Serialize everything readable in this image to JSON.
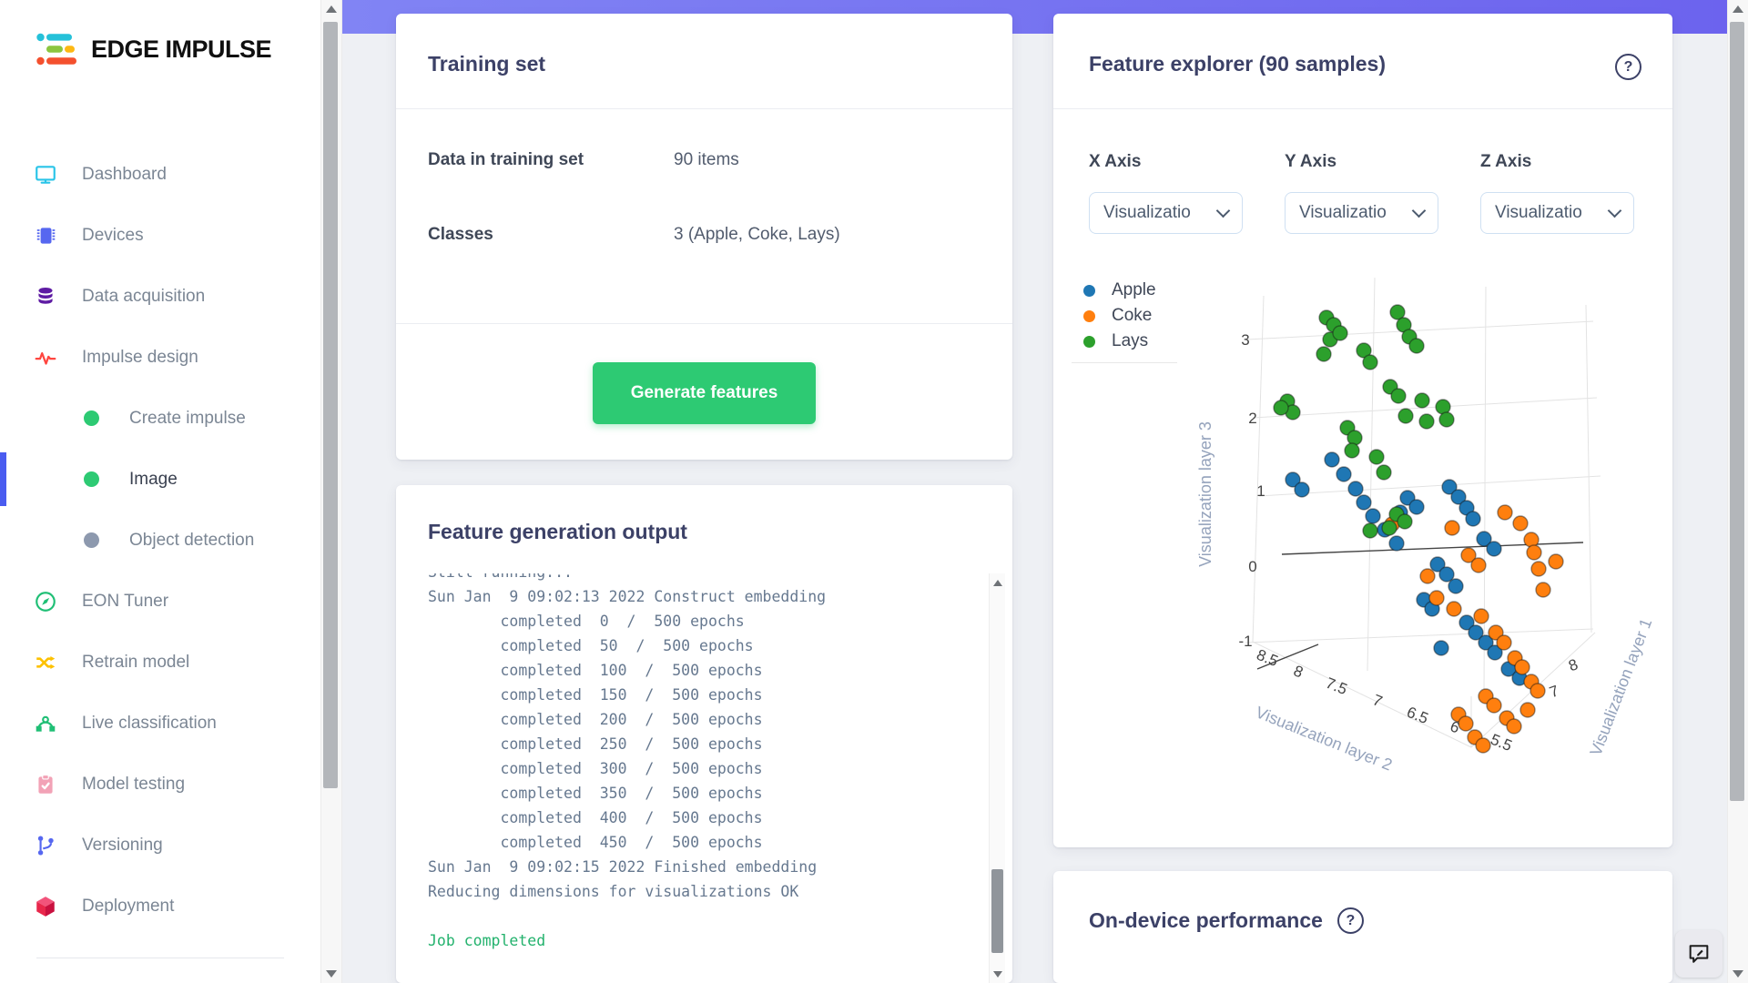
{
  "brand": {
    "name": "EDGE IMPULSE"
  },
  "sidebar": {
    "items": [
      {
        "label": "Dashboard",
        "icon": "dashboard"
      },
      {
        "label": "Devices",
        "icon": "devices"
      },
      {
        "label": "Data acquisition",
        "icon": "data-acquisition"
      },
      {
        "label": "Impulse design",
        "icon": "impulse-design"
      },
      {
        "label": "Create impulse",
        "sub": true,
        "dot": "#2dca73"
      },
      {
        "label": "Image",
        "sub": true,
        "dot": "#2dca73",
        "active": true
      },
      {
        "label": "Object detection",
        "sub": true,
        "dot": "#8d99ae"
      },
      {
        "label": "EON Tuner",
        "icon": "eon-tuner"
      },
      {
        "label": "Retrain model",
        "icon": "retrain-model"
      },
      {
        "label": "Live classification",
        "icon": "live-classification"
      },
      {
        "label": "Model testing",
        "icon": "model-testing"
      },
      {
        "label": "Versioning",
        "icon": "versioning"
      },
      {
        "label": "Deployment",
        "icon": "deployment"
      }
    ]
  },
  "training_set": {
    "title": "Training set",
    "rows": [
      {
        "label": "Data in training set",
        "value": "90 items"
      },
      {
        "label": "Classes",
        "value": "3 (Apple, Coke, Lays)"
      }
    ],
    "button_label": "Generate features"
  },
  "feature_output": {
    "title": "Feature generation output",
    "lines": [
      {
        "text": "Still running...",
        "clipped": true
      },
      {
        "text": "Sun Jan  9 09:02:13 2022 Construct embedding"
      },
      {
        "text": "        completed  0  /  500 epochs"
      },
      {
        "text": "        completed  50  /  500 epochs"
      },
      {
        "text": "        completed  100  /  500 epochs"
      },
      {
        "text": "        completed  150  /  500 epochs"
      },
      {
        "text": "        completed  200  /  500 epochs"
      },
      {
        "text": "        completed  250  /  500 epochs"
      },
      {
        "text": "        completed  300  /  500 epochs"
      },
      {
        "text": "        completed  350  /  500 epochs"
      },
      {
        "text": "        completed  400  /  500 epochs"
      },
      {
        "text": "        completed  450  /  500 epochs"
      },
      {
        "text": "Sun Jan  9 09:02:15 2022 Finished embedding"
      },
      {
        "text": "Reducing dimensions for visualizations OK"
      },
      {
        "text": ""
      },
      {
        "text": "Job completed",
        "status": "success"
      }
    ]
  },
  "feature_explorer": {
    "title": "Feature explorer (90 samples)",
    "help_glyph": "?",
    "axes": [
      {
        "label": "X Axis",
        "value": "Visualizatio"
      },
      {
        "label": "Y Axis",
        "value": "Visualizatio"
      },
      {
        "label": "Z Axis",
        "value": "Visualizatio"
      }
    ]
  },
  "on_device": {
    "title": "On-device performance",
    "help_glyph": "?"
  },
  "colors": {
    "accent_green": "#2dca73",
    "console_success": "#23b26d"
  },
  "chart_data": {
    "type": "scatter",
    "projection": "3d",
    "title": "Feature explorer (90 samples)",
    "samples": 90,
    "legend_position": "top-left",
    "legend": [
      {
        "name": "Apple",
        "color": "#1f77b4"
      },
      {
        "name": "Coke",
        "color": "#ff7f0e"
      },
      {
        "name": "Lays",
        "color": "#2ca02c"
      }
    ],
    "x_axis": {
      "title": "Visualization layer 2",
      "ticks": [
        "8.5",
        "8",
        "7.5",
        "7",
        "6.5",
        "6",
        "5.5"
      ]
    },
    "y_axis": {
      "title": "Visualization layer 1",
      "ticks": [
        "8",
        "7"
      ]
    },
    "z_axis": {
      "title": "Visualization layer 3",
      "ticks": [
        "3",
        "2",
        "1",
        "0",
        "-1"
      ]
    },
    "series": [
      {
        "name": "Apple",
        "color": "#1f77b4",
        "points": [
          [
            140,
            262
          ],
          [
            150,
            273
          ],
          [
            183,
            240
          ],
          [
            196,
            256
          ],
          [
            209,
            272
          ],
          [
            218,
            287
          ],
          [
            228,
            302
          ],
          [
            241,
            317
          ],
          [
            254,
            332
          ],
          [
            266,
            282
          ],
          [
            276,
            292
          ],
          [
            258,
            298
          ],
          [
            312,
            270
          ],
          [
            322,
            281
          ],
          [
            331,
            293
          ],
          [
            338,
            305
          ],
          [
            350,
            327
          ],
          [
            361,
            338
          ],
          [
            299,
            355
          ],
          [
            309,
            366
          ],
          [
            319,
            379
          ],
          [
            284,
            394
          ],
          [
            293,
            404
          ],
          [
            331,
            419
          ],
          [
            341,
            430
          ],
          [
            352,
            441
          ],
          [
            362,
            452
          ],
          [
            303,
            447
          ],
          [
            377,
            470
          ],
          [
            389,
            480
          ]
        ]
      },
      {
        "name": "Coke",
        "color": "#ff7f0e",
        "points": [
          [
            315,
            315
          ],
          [
            373,
            298
          ],
          [
            402,
            328
          ],
          [
            390,
            310
          ],
          [
            405,
            342
          ],
          [
            410,
            360
          ],
          [
            415,
            383
          ],
          [
            298,
            392
          ],
          [
            317,
            404
          ],
          [
            347,
            412
          ],
          [
            333,
            345
          ],
          [
            344,
            356
          ],
          [
            363,
            430
          ],
          [
            372,
            441
          ],
          [
            384,
            458
          ],
          [
            392,
            468
          ],
          [
            402,
            484
          ],
          [
            409,
            494
          ],
          [
            352,
            500
          ],
          [
            361,
            510
          ],
          [
            375,
            524
          ],
          [
            383,
            533
          ],
          [
            322,
            520
          ],
          [
            330,
            530
          ],
          [
            340,
            545
          ],
          [
            349,
            554
          ],
          [
            398,
            515
          ],
          [
            249,
            311
          ],
          [
            288,
            368
          ],
          [
            429,
            352
          ]
        ]
      },
      {
        "name": "Lays",
        "color": "#2ca02c",
        "points": [
          [
            134,
            176
          ],
          [
            140,
            188
          ],
          [
            127,
            183
          ],
          [
            177,
            84
          ],
          [
            185,
            92
          ],
          [
            181,
            108
          ],
          [
            174,
            124
          ],
          [
            192,
            101
          ],
          [
            218,
            120
          ],
          [
            225,
            133
          ],
          [
            255,
            78
          ],
          [
            262,
            92
          ],
          [
            268,
            105
          ],
          [
            276,
            115
          ],
          [
            247,
            160
          ],
          [
            256,
            170
          ],
          [
            282,
            175
          ],
          [
            305,
            182
          ],
          [
            309,
            196
          ],
          [
            287,
            198
          ],
          [
            264,
            192
          ],
          [
            200,
            205
          ],
          [
            208,
            216
          ],
          [
            205,
            230
          ],
          [
            232,
            237
          ],
          [
            240,
            254
          ],
          [
            254,
            300
          ],
          [
            263,
            308
          ],
          [
            246,
            315
          ],
          [
            225,
            318
          ]
        ]
      }
    ]
  }
}
